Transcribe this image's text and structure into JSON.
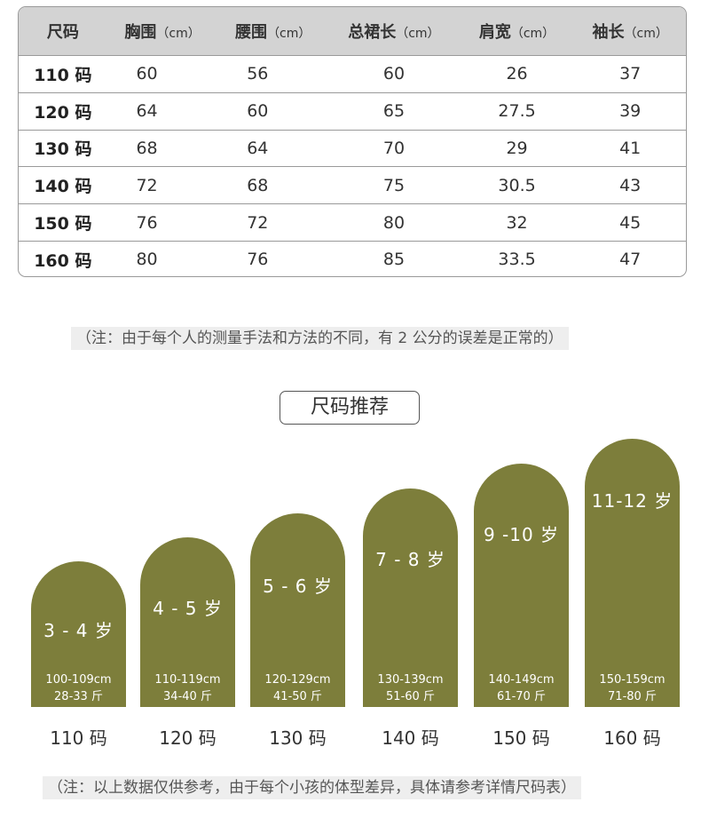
{
  "table": {
    "header": [
      {
        "name": "尺码",
        "unit": ""
      },
      {
        "name": "胸围",
        "unit": "（cm）"
      },
      {
        "name": "腰围",
        "unit": "（cm）"
      },
      {
        "name": "总裙长",
        "unit": "（cm）"
      },
      {
        "name": "肩宽",
        "unit": "（cm）"
      },
      {
        "name": "袖长",
        "unit": "（cm）"
      }
    ],
    "rows": [
      [
        "110 码",
        "60",
        "56",
        "60",
        "26",
        "37"
      ],
      [
        "120 码",
        "64",
        "60",
        "65",
        "27.5",
        "39"
      ],
      [
        "130 码",
        "68",
        "64",
        "70",
        "29",
        "41"
      ],
      [
        "140 码",
        "72",
        "68",
        "75",
        "30.5",
        "43"
      ],
      [
        "150 码",
        "76",
        "72",
        "80",
        "32",
        "45"
      ],
      [
        "160 码",
        "80",
        "76",
        "85",
        "33.5",
        "47"
      ]
    ]
  },
  "note_measure": "（注：由于每个人的测量手法和方法的不同，有 2 公分的误差是正常的）",
  "recommend_title": "尺码推荐",
  "recommendations": [
    {
      "age": "3 - 4 岁",
      "height": "100-109cm",
      "weight": "28-33 斤",
      "size": "110 码"
    },
    {
      "age": "4 - 5 岁",
      "height": "110-119cm",
      "weight": "34-40 斤",
      "size": "120 码"
    },
    {
      "age": "5 - 6 岁",
      "height": "120-129cm",
      "weight": "41-50 斤",
      "size": "130 码"
    },
    {
      "age": "7 - 8 岁",
      "height": "130-139cm",
      "weight": "51-60 斤",
      "size": "140 码"
    },
    {
      "age": "9 -10 岁",
      "height": "140-149cm",
      "weight": "61-70 斤",
      "size": "150 码"
    },
    {
      "age": "11-12 岁",
      "height": "150-159cm",
      "weight": "71-80 斤",
      "size": "160 码"
    }
  ],
  "note_reference": "（注：以上数据仅供参考，由于每个小孩的体型差异，具体请参考详情尺码表）",
  "colors": {
    "arch": "#7d7e3b",
    "header_bg": "#d3d3d3",
    "note_bg": "#eeeeee"
  }
}
